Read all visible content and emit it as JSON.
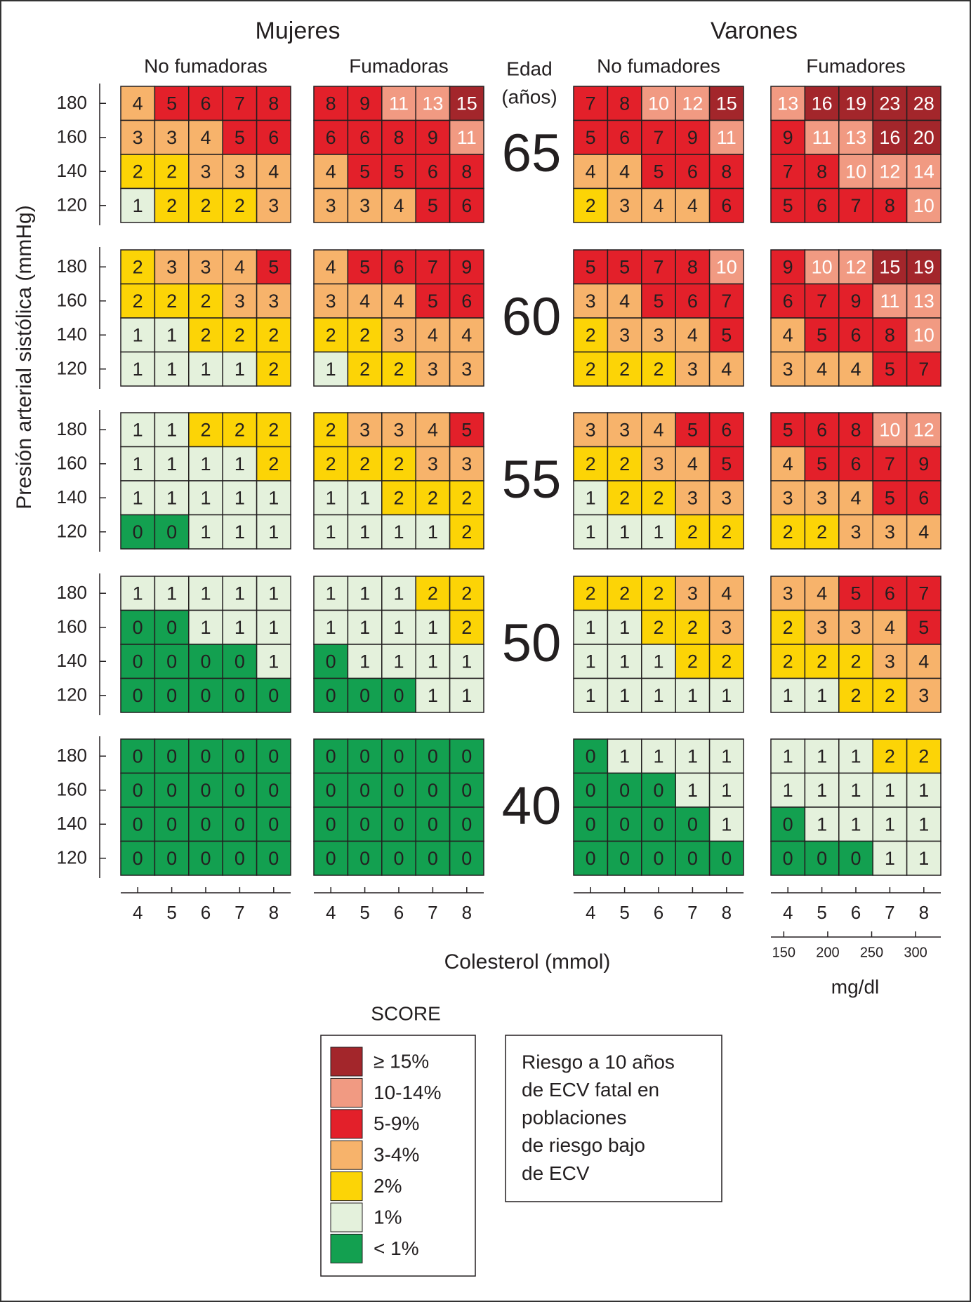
{
  "headers": {
    "women": "Mujeres",
    "men": "Varones"
  },
  "groups": [
    "No fumadoras",
    "Fumadoras",
    "No fumadores",
    "Fumadores"
  ],
  "age_header": [
    "Edad",
    "(años)"
  ],
  "y_label": "Presión arterial sistólica (mmHg)",
  "sbp": [
    180,
    160,
    140,
    120
  ],
  "cholesterol": [
    4,
    5,
    6,
    7,
    8
  ],
  "x_label": "Colesterol (mmol)",
  "mgdl": [
    150,
    200,
    250,
    300
  ],
  "mgdl_label": "mg/dl",
  "panels": [
    {
      "age": 65,
      "grids": [
        [
          [
            4,
            5,
            6,
            7,
            8
          ],
          [
            3,
            3,
            4,
            5,
            6
          ],
          [
            2,
            2,
            3,
            3,
            4
          ],
          [
            1,
            2,
            2,
            2,
            3
          ]
        ],
        [
          [
            8,
            9,
            11,
            13,
            15
          ],
          [
            6,
            6,
            8,
            9,
            11
          ],
          [
            4,
            5,
            5,
            6,
            8
          ],
          [
            3,
            3,
            4,
            5,
            6
          ]
        ],
        [
          [
            7,
            8,
            10,
            12,
            15
          ],
          [
            5,
            6,
            7,
            9,
            11
          ],
          [
            4,
            4,
            5,
            6,
            8
          ],
          [
            2,
            3,
            4,
            4,
            6
          ]
        ],
        [
          [
            13,
            16,
            19,
            23,
            28
          ],
          [
            9,
            11,
            13,
            16,
            20
          ],
          [
            7,
            8,
            10,
            12,
            14
          ],
          [
            5,
            6,
            7,
            8,
            10
          ]
        ]
      ]
    },
    {
      "age": 60,
      "grids": [
        [
          [
            2,
            3,
            3,
            4,
            5
          ],
          [
            2,
            2,
            2,
            3,
            3
          ],
          [
            1,
            1,
            2,
            2,
            2
          ],
          [
            1,
            1,
            1,
            1,
            2
          ]
        ],
        [
          [
            4,
            5,
            6,
            7,
            9
          ],
          [
            3,
            4,
            4,
            5,
            6
          ],
          [
            2,
            2,
            3,
            4,
            4
          ],
          [
            1,
            2,
            2,
            3,
            3
          ]
        ],
        [
          [
            5,
            5,
            7,
            8,
            10
          ],
          [
            3,
            4,
            5,
            6,
            7
          ],
          [
            2,
            3,
            3,
            4,
            5
          ],
          [
            2,
            2,
            2,
            3,
            4
          ]
        ],
        [
          [
            9,
            10,
            12,
            15,
            19
          ],
          [
            6,
            7,
            9,
            11,
            13
          ],
          [
            4,
            5,
            6,
            8,
            10
          ],
          [
            3,
            4,
            4,
            5,
            7
          ]
        ]
      ]
    },
    {
      "age": 55,
      "grids": [
        [
          [
            1,
            1,
            2,
            2,
            2
          ],
          [
            1,
            1,
            1,
            1,
            2
          ],
          [
            1,
            1,
            1,
            1,
            1
          ],
          [
            0,
            0,
            1,
            1,
            1
          ]
        ],
        [
          [
            2,
            3,
            3,
            4,
            5
          ],
          [
            2,
            2,
            2,
            3,
            3
          ],
          [
            1,
            1,
            2,
            2,
            2
          ],
          [
            1,
            1,
            1,
            1,
            2
          ]
        ],
        [
          [
            3,
            3,
            4,
            5,
            6
          ],
          [
            2,
            2,
            3,
            4,
            5
          ],
          [
            1,
            2,
            2,
            3,
            3
          ],
          [
            1,
            1,
            1,
            2,
            2
          ]
        ],
        [
          [
            5,
            6,
            8,
            10,
            12
          ],
          [
            4,
            5,
            6,
            7,
            9
          ],
          [
            3,
            3,
            4,
            5,
            6
          ],
          [
            2,
            2,
            3,
            3,
            4
          ]
        ]
      ]
    },
    {
      "age": 50,
      "grids": [
        [
          [
            1,
            1,
            1,
            1,
            1
          ],
          [
            0,
            0,
            1,
            1,
            1
          ],
          [
            0,
            0,
            0,
            0,
            1
          ],
          [
            0,
            0,
            0,
            0,
            0
          ]
        ],
        [
          [
            1,
            1,
            1,
            2,
            2
          ],
          [
            1,
            1,
            1,
            1,
            2
          ],
          [
            0,
            1,
            1,
            1,
            1
          ],
          [
            0,
            0,
            0,
            1,
            1
          ]
        ],
        [
          [
            2,
            2,
            2,
            3,
            4
          ],
          [
            1,
            1,
            2,
            2,
            3
          ],
          [
            1,
            1,
            1,
            2,
            2
          ],
          [
            1,
            1,
            1,
            1,
            1
          ]
        ],
        [
          [
            3,
            4,
            5,
            6,
            7
          ],
          [
            2,
            3,
            3,
            4,
            5
          ],
          [
            2,
            2,
            2,
            3,
            4
          ],
          [
            1,
            1,
            2,
            2,
            3
          ]
        ]
      ]
    },
    {
      "age": 40,
      "grids": [
        [
          [
            0,
            0,
            0,
            0,
            0
          ],
          [
            0,
            0,
            0,
            0,
            0
          ],
          [
            0,
            0,
            0,
            0,
            0
          ],
          [
            0,
            0,
            0,
            0,
            0
          ]
        ],
        [
          [
            0,
            0,
            0,
            0,
            0
          ],
          [
            0,
            0,
            0,
            0,
            0
          ],
          [
            0,
            0,
            0,
            0,
            0
          ],
          [
            0,
            0,
            0,
            0,
            0
          ]
        ],
        [
          [
            0,
            1,
            1,
            1,
            1
          ],
          [
            0,
            0,
            0,
            1,
            1
          ],
          [
            0,
            0,
            0,
            0,
            1
          ],
          [
            0,
            0,
            0,
            0,
            0
          ]
        ],
        [
          [
            1,
            1,
            1,
            2,
            2
          ],
          [
            1,
            1,
            1,
            1,
            1
          ],
          [
            0,
            1,
            1,
            1,
            1
          ],
          [
            0,
            0,
            0,
            1,
            1
          ]
        ]
      ]
    }
  ],
  "legend": {
    "title": "SCORE",
    "items": [
      {
        "label": "≥ 15%",
        "min": 15,
        "color": "#a3262b",
        "text_color": "#ffffff"
      },
      {
        "label": "10-14%",
        "min": 10,
        "color": "#f19a82",
        "text_color": "#ffffff"
      },
      {
        "label": "5-9%",
        "min": 5,
        "color": "#e3202a",
        "text_color": "#231f20"
      },
      {
        "label": "3-4%",
        "min": 3,
        "color": "#f7b36b",
        "text_color": "#231f20"
      },
      {
        "label": "2%",
        "min": 2,
        "color": "#fcd406",
        "text_color": "#231f20"
      },
      {
        "label": "1%",
        "min": 1,
        "color": "#e4f1dc",
        "text_color": "#231f20"
      },
      {
        "label": "< 1%",
        "color": "#13a050",
        "text_color": "#231f20"
      }
    ]
  },
  "note": [
    "Riesgo a 10 años",
    "de ECV fatal en",
    "poblaciones",
    "de riesgo bajo",
    "de ECV"
  ]
}
